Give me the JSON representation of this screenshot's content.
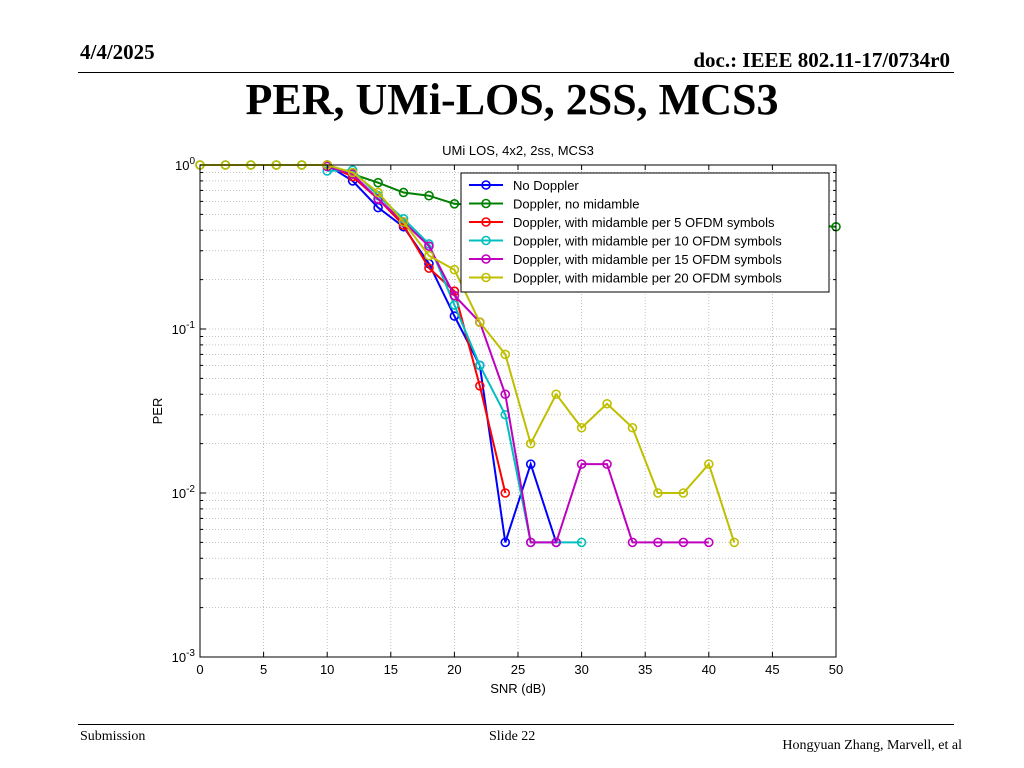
{
  "header": {
    "date": "4/4/2025",
    "doc": "doc.: IEEE 802.11-17/0734r0"
  },
  "slide_title": "PER, UMi-LOS, 2SS, MCS3",
  "footer": {
    "left": "Submission",
    "center": "Slide 22",
    "right": "Hongyuan Zhang, Marvell, et al"
  },
  "chart_data": {
    "type": "line",
    "title": "UMi LOS, 4x2, 2ss, MCS3",
    "xlabel": "SNR (dB)",
    "ylabel": "PER",
    "xlim": [
      0,
      50
    ],
    "ylim": [
      0.001,
      1
    ],
    "yscale": "log",
    "xticks": [
      0,
      5,
      10,
      15,
      20,
      25,
      30,
      35,
      40,
      45,
      50
    ],
    "yticks": [
      {
        "value": 1,
        "base": "10",
        "exp": "0"
      },
      {
        "value": 0.1,
        "base": "10",
        "exp": "-1"
      },
      {
        "value": 0.01,
        "base": "10",
        "exp": "-2"
      },
      {
        "value": 0.001,
        "base": "10",
        "exp": "-3"
      }
    ],
    "grid": true,
    "legend_position": "top-right",
    "marker": "circle",
    "series": [
      {
        "name": "No Doppler",
        "color": "#0000ff",
        "x": [
          10,
          12,
          14,
          16,
          18,
          20,
          22,
          24,
          26,
          28
        ],
        "y": [
          1.0,
          0.8,
          0.55,
          0.42,
          0.25,
          0.12,
          0.06,
          0.005,
          0.015,
          0.005
        ]
      },
      {
        "name": "Doppler, no midamble",
        "color": "#008000",
        "x": [
          0,
          2,
          4,
          6,
          8,
          10,
          12,
          14,
          16,
          18,
          20,
          50
        ],
        "y": [
          1.0,
          1.0,
          1.0,
          1.0,
          1.0,
          1.0,
          0.88,
          0.78,
          0.68,
          0.65,
          0.58,
          0.42
        ]
      },
      {
        "name": "Doppler, with midamble per 5 OFDM symbols",
        "color": "#ff0000",
        "x": [
          10,
          12,
          14,
          16,
          18,
          20,
          22,
          24
        ],
        "y": [
          1.0,
          0.85,
          0.62,
          0.43,
          0.235,
          0.17,
          0.045,
          0.01
        ]
      },
      {
        "name": "Doppler, with midamble per 10 OFDM symbols",
        "color": "#00bfbf",
        "x": [
          10,
          12,
          14,
          16,
          18,
          20,
          22,
          24,
          26,
          28,
          30
        ],
        "y": [
          0.92,
          0.93,
          0.65,
          0.47,
          0.33,
          0.14,
          0.06,
          0.03,
          0.005,
          0.005,
          0.005
        ]
      },
      {
        "name": "Doppler, with midamble per 15 OFDM symbols",
        "color": "#bf00bf",
        "x": [
          10,
          12,
          14,
          16,
          18,
          20,
          22,
          24,
          26,
          28,
          30,
          32,
          34,
          36,
          38,
          40
        ],
        "y": [
          0.98,
          0.88,
          0.62,
          0.45,
          0.32,
          0.16,
          0.11,
          0.04,
          0.005,
          0.005,
          0.015,
          0.015,
          0.005,
          0.005,
          0.005,
          0.005
        ]
      },
      {
        "name": "Doppler, with midamble per 20 OFDM symbols",
        "color": "#bfbf00",
        "x": [
          0,
          2,
          4,
          6,
          8,
          10,
          12,
          14,
          16,
          18,
          20,
          22,
          24,
          26,
          28,
          30,
          32,
          34,
          36,
          38,
          40,
          42
        ],
        "y": [
          1.0,
          1.0,
          1.0,
          1.0,
          1.0,
          1.0,
          0.9,
          0.68,
          0.45,
          0.28,
          0.23,
          0.11,
          0.07,
          0.02,
          0.04,
          0.025,
          0.035,
          0.025,
          0.01,
          0.01,
          0.015,
          0.005
        ]
      }
    ]
  }
}
